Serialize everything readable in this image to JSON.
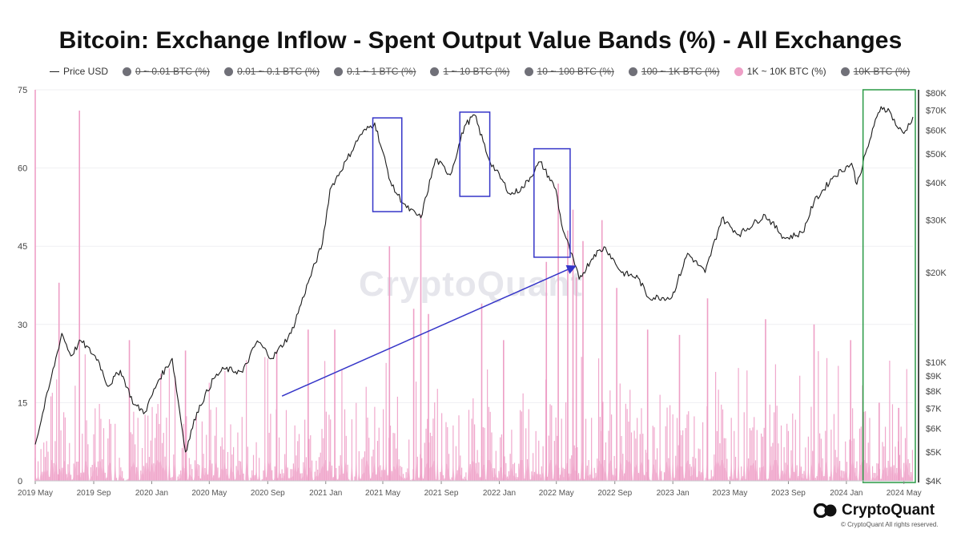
{
  "chart_data": {
    "type": "line",
    "title": "Bitcoin: Exchange Inflow - Spent Output Value Bands (%) - All Exchanges",
    "watermark": "CryptoQuant",
    "legend_position": "top",
    "legend": [
      {
        "label": "Price USD",
        "kind": "line",
        "color": "#222222",
        "enabled": true
      },
      {
        "label": "0 ~ 0.01 BTC (%)",
        "kind": "dot",
        "color": "#707078",
        "enabled": false
      },
      {
        "label": "0.01 ~ 0.1 BTC (%)",
        "kind": "dot",
        "color": "#707078",
        "enabled": false
      },
      {
        "label": "0.1 ~ 1 BTC (%)",
        "kind": "dot",
        "color": "#707078",
        "enabled": false
      },
      {
        "label": "1 ~ 10 BTC (%)",
        "kind": "dot",
        "color": "#707078",
        "enabled": false
      },
      {
        "label": "10 ~ 100 BTC (%)",
        "kind": "dot",
        "color": "#707078",
        "enabled": false
      },
      {
        "label": "100 ~ 1K BTC (%)",
        "kind": "dot",
        "color": "#707078",
        "enabled": false
      },
      {
        "label": "1K ~ 10K BTC (%)",
        "kind": "dot",
        "color": "#ee9fc6",
        "enabled": true
      },
      {
        "label": "10K BTC (%)",
        "kind": "dot",
        "color": "#707078",
        "enabled": false
      }
    ],
    "x_range": [
      "2019-05-01",
      "2024-05-20"
    ],
    "x_ticks": [
      "2019 May",
      "2019 Sep",
      "2020 Jan",
      "2020 May",
      "2020 Sep",
      "2021 Jan",
      "2021 May",
      "2021 Sep",
      "2022 Jan",
      "2022 May",
      "2022 Sep",
      "2023 Jan",
      "2023 May",
      "2023 Sep",
      "2024 Jan",
      "2024 May"
    ],
    "y_left": {
      "label": "",
      "ticks": [
        "0",
        "15",
        "30",
        "45",
        "60",
        "75"
      ],
      "range": [
        0,
        75
      ]
    },
    "y_right": {
      "label": "",
      "scale": "log",
      "ticks": [
        "$4K",
        "$5K",
        "$6K",
        "$7K",
        "$8K",
        "$9K",
        "$10K",
        "$20K",
        "$30K",
        "$40K",
        "$50K",
        "$60K",
        "$70K",
        "$80K"
      ],
      "range": [
        4000,
        82000
      ]
    },
    "grid": true,
    "series": [
      {
        "name": "Price USD",
        "axis": "right",
        "color": "#1a1a1a",
        "points": [
          [
            "2019-05-01",
            5300
          ],
          [
            "2019-06-01",
            8500
          ],
          [
            "2019-06-26",
            12500
          ],
          [
            "2019-07-15",
            10500
          ],
          [
            "2019-08-05",
            11800
          ],
          [
            "2019-09-10",
            10200
          ],
          [
            "2019-10-01",
            8300
          ],
          [
            "2019-10-27",
            9400
          ],
          [
            "2019-11-25",
            7200
          ],
          [
            "2019-12-18",
            6800
          ],
          [
            "2020-01-15",
            8700
          ],
          [
            "2020-02-13",
            10300
          ],
          [
            "2020-03-12",
            5000
          ],
          [
            "2020-04-05",
            6800
          ],
          [
            "2020-05-10",
            8800
          ],
          [
            "2020-06-01",
            9500
          ],
          [
            "2020-07-10",
            9250
          ],
          [
            "2020-08-10",
            11800
          ],
          [
            "2020-09-10",
            10300
          ],
          [
            "2020-10-20",
            12500
          ],
          [
            "2020-11-25",
            18500
          ],
          [
            "2020-12-25",
            25000
          ],
          [
            "2021-01-10",
            38000
          ],
          [
            "2021-02-15",
            48000
          ],
          [
            "2021-03-15",
            58000
          ],
          [
            "2021-04-14",
            63500
          ],
          [
            "2021-05-20",
            39000
          ],
          [
            "2021-06-20",
            33000
          ],
          [
            "2021-07-20",
            30500
          ],
          [
            "2021-08-20",
            48000
          ],
          [
            "2021-09-20",
            42500
          ],
          [
            "2021-10-20",
            62000
          ],
          [
            "2021-11-10",
            67500
          ],
          [
            "2021-12-10",
            48000
          ],
          [
            "2022-01-25",
            36500
          ],
          [
            "2022-02-20",
            38500
          ],
          [
            "2022-03-28",
            47000
          ],
          [
            "2022-04-30",
            38000
          ],
          [
            "2022-05-12",
            29000
          ],
          [
            "2022-06-18",
            19000
          ],
          [
            "2022-07-20",
            23000
          ],
          [
            "2022-08-12",
            24300
          ],
          [
            "2022-09-15",
            20000
          ],
          [
            "2022-10-20",
            19200
          ],
          [
            "2022-11-10",
            16500
          ],
          [
            "2022-12-30",
            16500
          ],
          [
            "2023-02-01",
            23200
          ],
          [
            "2023-03-10",
            20000
          ],
          [
            "2023-04-14",
            30400
          ],
          [
            "2023-05-20",
            26800
          ],
          [
            "2023-07-14",
            31200
          ],
          [
            "2023-08-25",
            26000
          ],
          [
            "2023-10-01",
            27200
          ],
          [
            "2023-10-25",
            34500
          ],
          [
            "2023-12-05",
            42000
          ],
          [
            "2024-01-12",
            46500
          ],
          [
            "2024-01-23",
            39500
          ],
          [
            "2024-02-28",
            62000
          ],
          [
            "2024-03-14",
            72000
          ],
          [
            "2024-04-01",
            69500
          ],
          [
            "2024-04-17",
            61500
          ],
          [
            "2024-05-01",
            58500
          ],
          [
            "2024-05-20",
            66500
          ]
        ]
      },
      {
        "name": "1K ~ 10K BTC (%)",
        "axis": "left",
        "color": "#ee9fc6",
        "typical_range": [
          0,
          15
        ],
        "spikes": [
          [
            "2019-05-01",
            75
          ],
          [
            "2019-06-20",
            38
          ],
          [
            "2019-08-02",
            71
          ],
          [
            "2019-11-15",
            27
          ],
          [
            "2020-03-12",
            25
          ],
          [
            "2020-09-20",
            25
          ],
          [
            "2020-11-25",
            29
          ],
          [
            "2021-01-20",
            29
          ],
          [
            "2021-05-15",
            45
          ],
          [
            "2021-07-05",
            33
          ],
          [
            "2021-07-20",
            51
          ],
          [
            "2021-08-05",
            32
          ],
          [
            "2021-11-25",
            34
          ],
          [
            "2022-01-10",
            27
          ],
          [
            "2022-04-10",
            42
          ],
          [
            "2022-05-05",
            57
          ],
          [
            "2022-05-25",
            48
          ],
          [
            "2022-06-05",
            52
          ],
          [
            "2022-06-12",
            39
          ],
          [
            "2022-06-26",
            46
          ],
          [
            "2022-08-05",
            50
          ],
          [
            "2022-09-05",
            37
          ],
          [
            "2022-11-09",
            29
          ],
          [
            "2023-01-15",
            28
          ],
          [
            "2023-03-15",
            35
          ],
          [
            "2023-07-15",
            31
          ],
          [
            "2023-10-25",
            30
          ],
          [
            "2024-01-10",
            27
          ],
          [
            "2024-03-10",
            15
          ],
          [
            "2024-04-20",
            14
          ]
        ]
      }
    ],
    "annotations": [
      {
        "type": "box",
        "color": "#3535c8",
        "x": [
          "2021-04-10",
          "2021-06-10"
        ],
        "y": [
          32000,
          66000
        ]
      },
      {
        "type": "box",
        "color": "#3535c8",
        "x": [
          "2021-10-10",
          "2021-12-12"
        ],
        "y": [
          36000,
          69000
        ]
      },
      {
        "type": "box",
        "color": "#3535c8",
        "x": [
          "2022-03-15",
          "2022-05-30"
        ],
        "y": [
          22500,
          52000
        ]
      },
      {
        "type": "arrow",
        "color": "#3535c8",
        "from": [
          "2020-10-01",
          7700
        ],
        "to": [
          "2022-06-10",
          21000
        ]
      },
      {
        "type": "box",
        "color": "#2a9a45",
        "x": [
          "2024-02-05",
          "2024-05-25"
        ],
        "y": [
          3950,
          82000
        ]
      }
    ],
    "footer": {
      "brand": "CryptoQuant",
      "copyright": "© CryptoQuant All rights reserved."
    }
  }
}
